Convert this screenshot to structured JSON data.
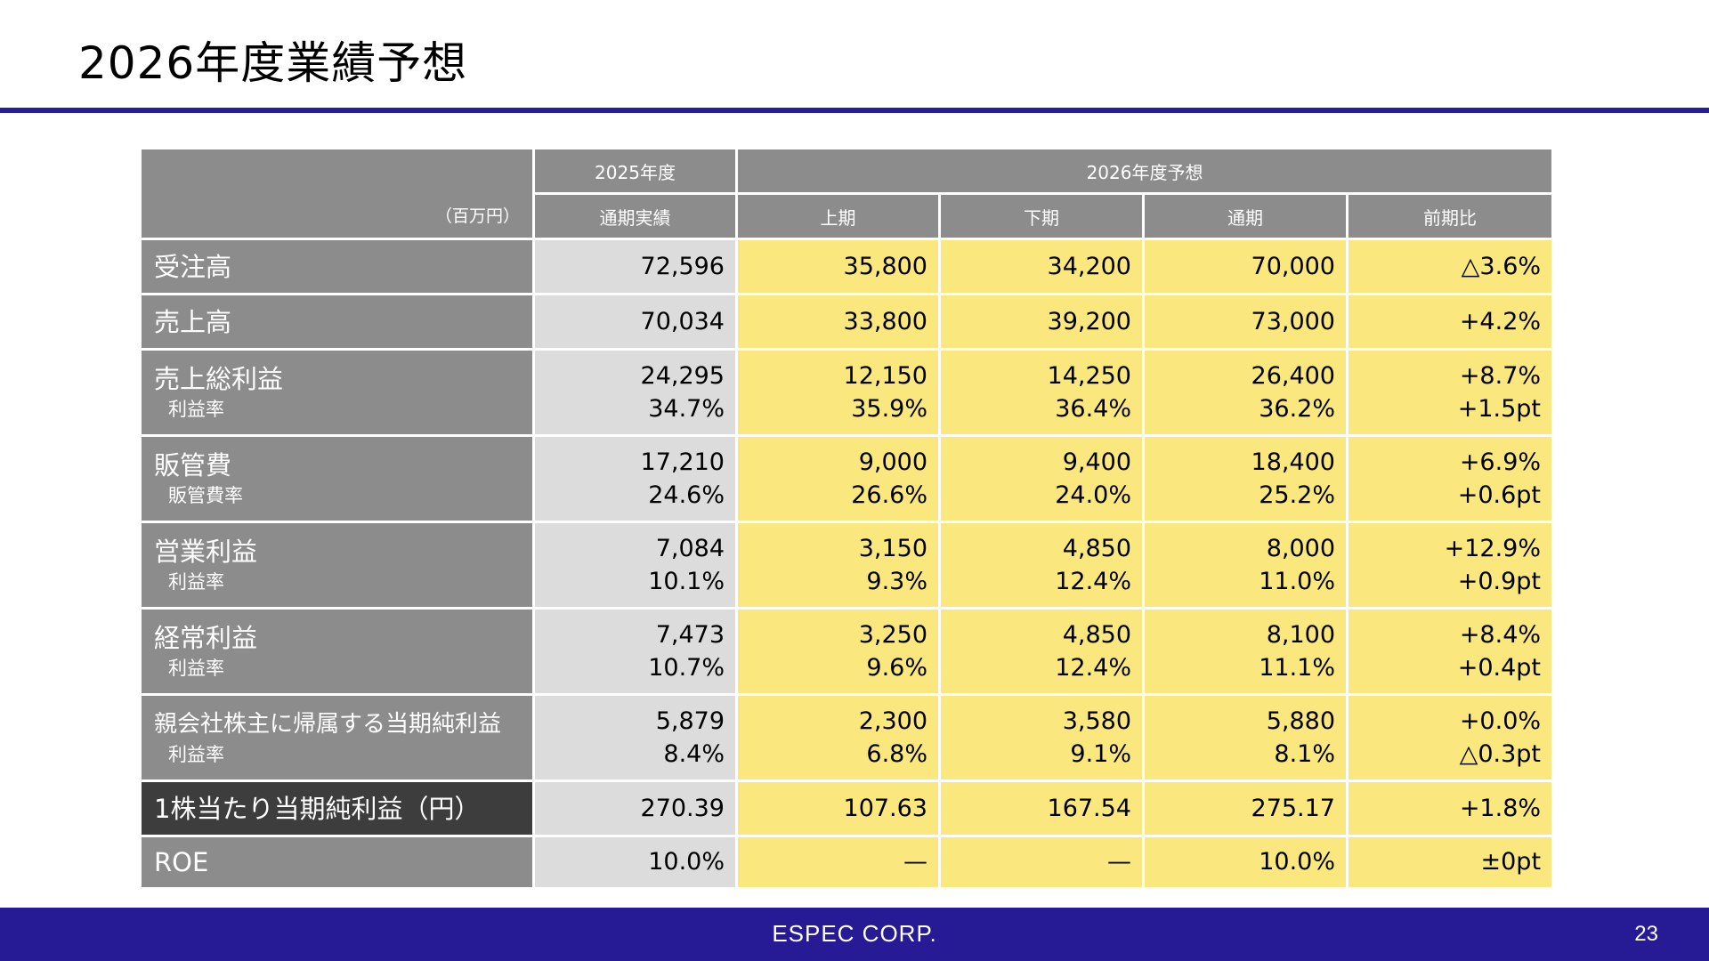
{
  "title": "2026年度業績予想",
  "header": {
    "unit": "（百万円）",
    "group_actual": "2025年度",
    "group_forecast": "2026年度予想",
    "col_actual": "通期実績",
    "col_h1": "上期",
    "col_h2": "下期",
    "col_full": "通期",
    "col_yoy": "前期比"
  },
  "rows": [
    {
      "label": "受注高",
      "actual": "72,596",
      "h1": "35,800",
      "h2": "34,200",
      "full": "70,000",
      "yoy": "△3.6%"
    },
    {
      "label": "売上高",
      "actual": "70,034",
      "h1": "33,800",
      "h2": "39,200",
      "full": "73,000",
      "yoy": "+4.2%"
    },
    {
      "label": "売上総利益",
      "sub": "利益率",
      "actual": "24,295",
      "actual2": "34.7%",
      "h1": "12,150",
      "h12": "35.9%",
      "h2": "14,250",
      "h22": "36.4%",
      "full": "26,400",
      "full2": "36.2%",
      "yoy": "+8.7%",
      "yoy2": "+1.5pt"
    },
    {
      "label": "販管費",
      "sub": "販管費率",
      "actual": "17,210",
      "actual2": "24.6%",
      "h1": "9,000",
      "h12": "26.6%",
      "h2": "9,400",
      "h22": "24.0%",
      "full": "18,400",
      "full2": "25.2%",
      "yoy": "+6.9%",
      "yoy2": "+0.6pt"
    },
    {
      "label": "営業利益",
      "sub": "利益率",
      "actual": "7,084",
      "actual2": "10.1%",
      "h1": "3,150",
      "h12": "9.3%",
      "h2": "4,850",
      "h22": "12.4%",
      "full": "8,000",
      "full2": "11.0%",
      "yoy": "+12.9%",
      "yoy2": "+0.9pt"
    },
    {
      "label": "経常利益",
      "sub": "利益率",
      "actual": "7,473",
      "actual2": "10.7%",
      "h1": "3,250",
      "h12": "9.6%",
      "h2": "4,850",
      "h22": "12.4%",
      "full": "8,100",
      "full2": "11.1%",
      "yoy": "+8.4%",
      "yoy2": "+0.4pt"
    },
    {
      "label": "親会社株主に帰属する当期純利益",
      "sub": "利益率",
      "actual": "5,879",
      "actual2": "8.4%",
      "h1": "2,300",
      "h12": "6.8%",
      "h2": "3,580",
      "h22": "9.1%",
      "full": "5,880",
      "full2": "8.1%",
      "yoy": "+0.0%",
      "yoy2": "△0.3pt"
    },
    {
      "label": "1株当たり当期純利益（円）",
      "actual": "270.39",
      "h1": "107.63",
      "h2": "167.54",
      "full": "275.17",
      "yoy": "+1.8%"
    },
    {
      "label": "ROE",
      "actual": "10.0%",
      "h1": "—",
      "h2": "—",
      "full": "10.0%",
      "yoy": "±0pt"
    }
  ],
  "footer": {
    "company": "ESPEC CORP.",
    "page": "23"
  }
}
